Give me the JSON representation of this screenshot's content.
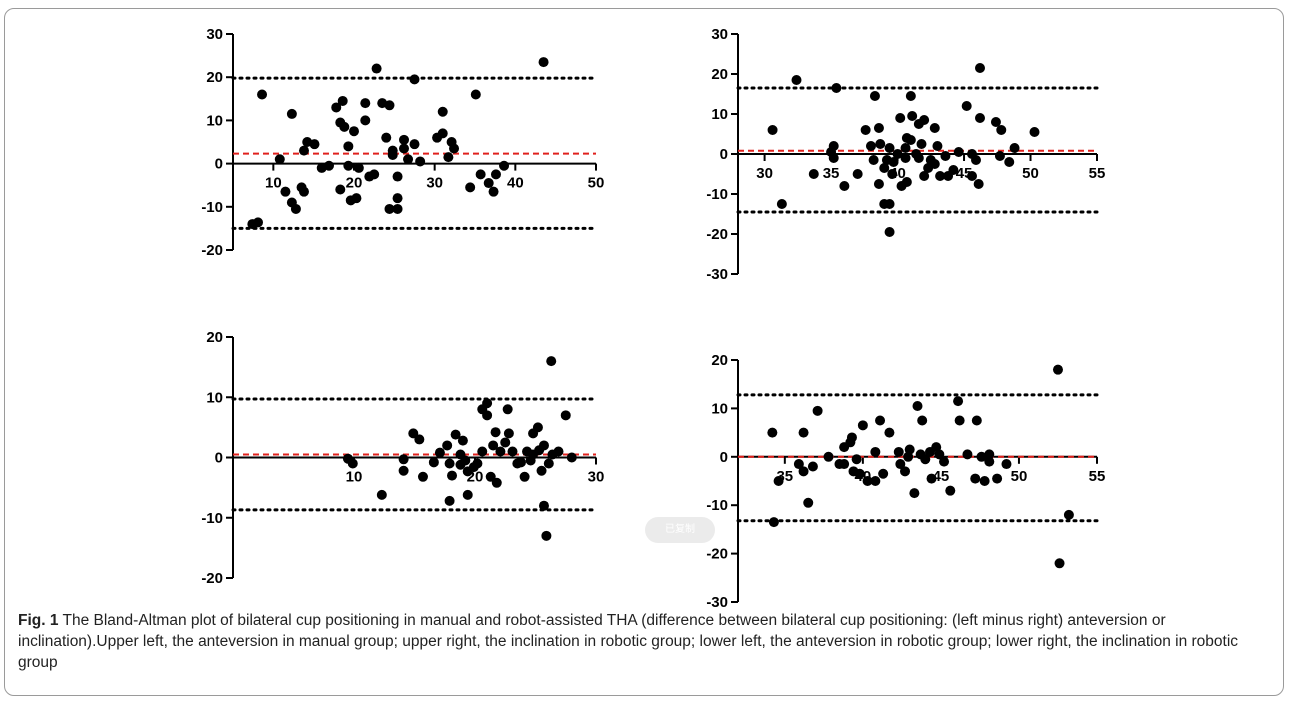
{
  "caption": {
    "label": "Fig. 1",
    "text": " The Bland-Altman plot of bilateral cup positioning in manual and robot-assisted THA (difference between bilateral cup positioning: (left minus right) anteversion or inclination).Upper left, the anteversion in manual group; upper right, the inclination in robotic group; lower left, the anteversion in robotic group; lower right, the inclination in robotic group"
  },
  "toast": {
    "text": "已复制"
  },
  "chart_data": [
    {
      "type": "scatter",
      "title": "",
      "xlabel": "",
      "ylabel": "",
      "xlim": [
        5,
        50
      ],
      "ylim": [
        -20,
        30
      ],
      "xticks": [
        10,
        20,
        30,
        40,
        50
      ],
      "yticks": [
        -20,
        -10,
        0,
        10,
        20,
        30
      ],
      "mean_line": 2.3,
      "limits_of_agreement": [
        19.8,
        -15.0
      ],
      "points": [
        [
          8.6,
          16
        ],
        [
          7.4,
          -14
        ],
        [
          8.1,
          -13.6
        ],
        [
          10.8,
          1
        ],
        [
          11.5,
          -6.5
        ],
        [
          12.3,
          -9
        ],
        [
          12.3,
          11.5
        ],
        [
          12.8,
          -10.5
        ],
        [
          13.5,
          -5.5
        ],
        [
          13.8,
          -6.5
        ],
        [
          13.8,
          3
        ],
        [
          14.2,
          5
        ],
        [
          15.1,
          4.5
        ],
        [
          16,
          -1
        ],
        [
          16.9,
          -0.5
        ],
        [
          17.8,
          13
        ],
        [
          18.3,
          9.5
        ],
        [
          18.6,
          14.5
        ],
        [
          18.3,
          -6
        ],
        [
          18.8,
          8.5
        ],
        [
          19.3,
          -0.5
        ],
        [
          19.3,
          4
        ],
        [
          20,
          7.5
        ],
        [
          19.6,
          -8.5
        ],
        [
          20.3,
          -8
        ],
        [
          20.6,
          -1
        ],
        [
          21.4,
          14
        ],
        [
          21.4,
          10
        ],
        [
          21.9,
          -3
        ],
        [
          22.5,
          -2.5
        ],
        [
          22.8,
          22
        ],
        [
          23.5,
          14
        ],
        [
          24,
          6
        ],
        [
          24.4,
          13.5
        ],
        [
          24.4,
          -10.5
        ],
        [
          24.8,
          3
        ],
        [
          24.8,
          2
        ],
        [
          25.4,
          -10.5
        ],
        [
          25.4,
          -3
        ],
        [
          25.4,
          -8
        ],
        [
          26.2,
          5.5
        ],
        [
          26.2,
          3.5
        ],
        [
          26.7,
          1
        ],
        [
          27.5,
          19.5
        ],
        [
          27.5,
          4.5
        ],
        [
          28.2,
          0.5
        ],
        [
          30.3,
          6
        ],
        [
          31,
          7
        ],
        [
          31,
          12
        ],
        [
          32.1,
          5
        ],
        [
          32.4,
          3.5
        ],
        [
          31.7,
          1.5
        ],
        [
          34.4,
          -5.5
        ],
        [
          35.1,
          16
        ],
        [
          35.7,
          -2.5
        ],
        [
          36.7,
          -4.5
        ],
        [
          37.3,
          -6.5
        ],
        [
          37.6,
          -2.5
        ],
        [
          38.6,
          -0.5
        ],
        [
          43.5,
          23.5
        ]
      ]
    },
    {
      "type": "scatter",
      "title": "",
      "xlabel": "",
      "ylabel": "",
      "xlim": [
        28,
        55
      ],
      "ylim": [
        -30,
        30
      ],
      "xticks": [
        30,
        35,
        40,
        45,
        50,
        55
      ],
      "yticks": [
        -30,
        -20,
        -10,
        0,
        10,
        20,
        30
      ],
      "mean_line": 0.8,
      "limits_of_agreement": [
        16.5,
        -14.5
      ],
      "points": [
        [
          30.6,
          6
        ],
        [
          31.3,
          -12.5
        ],
        [
          32.4,
          18.5
        ],
        [
          33.7,
          -5
        ],
        [
          35,
          0.5
        ],
        [
          35.2,
          2
        ],
        [
          35.2,
          -1
        ],
        [
          35.4,
          16.5
        ],
        [
          36,
          -8
        ],
        [
          37,
          -5
        ],
        [
          37.6,
          6
        ],
        [
          38,
          2
        ],
        [
          38.2,
          -1.5
        ],
        [
          38.3,
          14.5
        ],
        [
          38.6,
          -7.5
        ],
        [
          38.6,
          6.5
        ],
        [
          38.7,
          2.5
        ],
        [
          39,
          -3.5
        ],
        [
          39,
          -12.5
        ],
        [
          39.4,
          -12.5
        ],
        [
          39.4,
          -19.5
        ],
        [
          39.2,
          -1.5
        ],
        [
          39.4,
          1.5
        ],
        [
          39.6,
          -5
        ],
        [
          39.7,
          -2
        ],
        [
          40,
          0
        ],
        [
          40.2,
          9
        ],
        [
          40.6,
          1.5
        ],
        [
          40.3,
          -8
        ],
        [
          40.6,
          -1
        ],
        [
          40.7,
          -7
        ],
        [
          40.7,
          4
        ],
        [
          41,
          3.5
        ],
        [
          41,
          14.5
        ],
        [
          41.1,
          9.5
        ],
        [
          41.4,
          0
        ],
        [
          41.6,
          7.5
        ],
        [
          41.6,
          -1
        ],
        [
          41.8,
          2.5
        ],
        [
          42,
          8.5
        ],
        [
          42,
          -5.5
        ],
        [
          42.3,
          -3.5
        ],
        [
          42.5,
          -1.5
        ],
        [
          42.8,
          -2.5
        ],
        [
          42.8,
          6.5
        ],
        [
          43,
          2
        ],
        [
          43.2,
          -5.5
        ],
        [
          43.6,
          -0.5
        ],
        [
          43.8,
          -5.5
        ],
        [
          44.2,
          -4
        ],
        [
          44.6,
          0.5
        ],
        [
          45.2,
          12
        ],
        [
          45.6,
          -5.5
        ],
        [
          45.6,
          0
        ],
        [
          45.9,
          -1.5
        ],
        [
          46.1,
          -7.5
        ],
        [
          46.2,
          21.5
        ],
        [
          46.2,
          9
        ],
        [
          47.4,
          8
        ],
        [
          47.7,
          -0.5
        ],
        [
          47.8,
          6
        ],
        [
          48.4,
          -2
        ],
        [
          48.8,
          1.5
        ],
        [
          50.3,
          5.5
        ]
      ]
    },
    {
      "type": "scatter",
      "title": "",
      "xlabel": "",
      "ylabel": "",
      "xlim": [
        0,
        30
      ],
      "ylim": [
        -20,
        20
      ],
      "xticks": [
        10,
        20,
        30
      ],
      "yticks": [
        -20,
        -10,
        0,
        10,
        20
      ],
      "mean_line": 0.5,
      "limits_of_agreement": [
        9.7,
        -8.7
      ],
      "points": [
        [
          9.5,
          -0.2
        ],
        [
          9.9,
          -1
        ],
        [
          12.3,
          -6.2
        ],
        [
          14.1,
          -0.3
        ],
        [
          14.1,
          -2.2
        ],
        [
          14.9,
          4
        ],
        [
          15.4,
          3
        ],
        [
          15.7,
          -3.2
        ],
        [
          16.6,
          -0.8
        ],
        [
          17.1,
          0.8
        ],
        [
          17.7,
          2
        ],
        [
          17.9,
          -7.2
        ],
        [
          17.9,
          -1
        ],
        [
          18.1,
          -3
        ],
        [
          18.4,
          3.8
        ],
        [
          18.8,
          0.5
        ],
        [
          18.8,
          -1.2
        ],
        [
          19.2,
          -0.5
        ],
        [
          19,
          2.8
        ],
        [
          19.4,
          -6.2
        ],
        [
          19.4,
          -2.3
        ],
        [
          19.9,
          -1.6
        ],
        [
          20.2,
          -1
        ],
        [
          20.6,
          1
        ],
        [
          20.6,
          8
        ],
        [
          21,
          7
        ],
        [
          21,
          9
        ],
        [
          21.3,
          -3.2
        ],
        [
          21.5,
          2
        ],
        [
          21.7,
          4.2
        ],
        [
          21.8,
          -4.2
        ],
        [
          22.1,
          1
        ],
        [
          22.5,
          2.5
        ],
        [
          22.7,
          8
        ],
        [
          22.8,
          4
        ],
        [
          23.1,
          1
        ],
        [
          23.5,
          -1
        ],
        [
          23.8,
          -0.8
        ],
        [
          24.1,
          -3.2
        ],
        [
          24.3,
          1
        ],
        [
          24.6,
          -0.5
        ],
        [
          24.8,
          4
        ],
        [
          24.8,
          0.5
        ],
        [
          25.2,
          5
        ],
        [
          25.3,
          1.2
        ],
        [
          25.5,
          -2.2
        ],
        [
          25.7,
          -8
        ],
        [
          25.7,
          2
        ],
        [
          25.9,
          -13
        ],
        [
          26.1,
          -1
        ],
        [
          26.3,
          16
        ],
        [
          26.4,
          0.5
        ],
        [
          26.9,
          1
        ],
        [
          27.5,
          7
        ],
        [
          28,
          0
        ]
      ]
    },
    {
      "type": "scatter",
      "title": "",
      "xlabel": "",
      "ylabel": "",
      "xlim": [
        32,
        55
      ],
      "ylim": [
        -30,
        20
      ],
      "xticks": [
        35,
        40,
        45,
        50,
        55
      ],
      "yticks": [
        -30,
        -20,
        -10,
        0,
        10,
        20
      ],
      "mean_line": 0,
      "limits_of_agreement": [
        12.8,
        -13.2
      ],
      "points": [
        [
          34.2,
          5
        ],
        [
          34.3,
          -13.5
        ],
        [
          34.6,
          -5
        ],
        [
          35.9,
          -1.5
        ],
        [
          36.2,
          5
        ],
        [
          36.2,
          -3
        ],
        [
          36.5,
          -9.5
        ],
        [
          36.8,
          -2
        ],
        [
          37.1,
          9.5
        ],
        [
          37.8,
          0
        ],
        [
          38.5,
          -1.5
        ],
        [
          38.8,
          2
        ],
        [
          38.8,
          -1.5
        ],
        [
          39.2,
          3
        ],
        [
          39.3,
          4
        ],
        [
          39.4,
          -3
        ],
        [
          39.6,
          -0.5
        ],
        [
          39.8,
          -3.5
        ],
        [
          40,
          6.5
        ],
        [
          40.3,
          -5
        ],
        [
          40.8,
          1
        ],
        [
          40.8,
          -5
        ],
        [
          41.1,
          7.5
        ],
        [
          41.3,
          -3.5
        ],
        [
          41.7,
          5
        ],
        [
          42.3,
          1
        ],
        [
          42.4,
          -1.5
        ],
        [
          42.7,
          -3
        ],
        [
          42.9,
          0
        ],
        [
          43,
          1.5
        ],
        [
          43.3,
          -7.5
        ],
        [
          43.5,
          10.5
        ],
        [
          43.7,
          0.5
        ],
        [
          43.8,
          7.5
        ],
        [
          44,
          -0.5
        ],
        [
          44.3,
          1
        ],
        [
          44.4,
          -4.5
        ],
        [
          44.7,
          2
        ],
        [
          44.9,
          0.5
        ],
        [
          45.2,
          -1
        ],
        [
          45.6,
          -7
        ],
        [
          46.1,
          11.5
        ],
        [
          46.2,
          7.5
        ],
        [
          46.7,
          0.5
        ],
        [
          47.2,
          -4.5
        ],
        [
          47.3,
          7.5
        ],
        [
          47.6,
          0
        ],
        [
          47.8,
          -5
        ],
        [
          48.1,
          0.5
        ],
        [
          48.1,
          -1
        ],
        [
          48.6,
          -4.5
        ],
        [
          49.2,
          -1.5
        ],
        [
          52.5,
          18
        ],
        [
          52.6,
          -22
        ],
        [
          53.2,
          -12
        ]
      ]
    }
  ]
}
